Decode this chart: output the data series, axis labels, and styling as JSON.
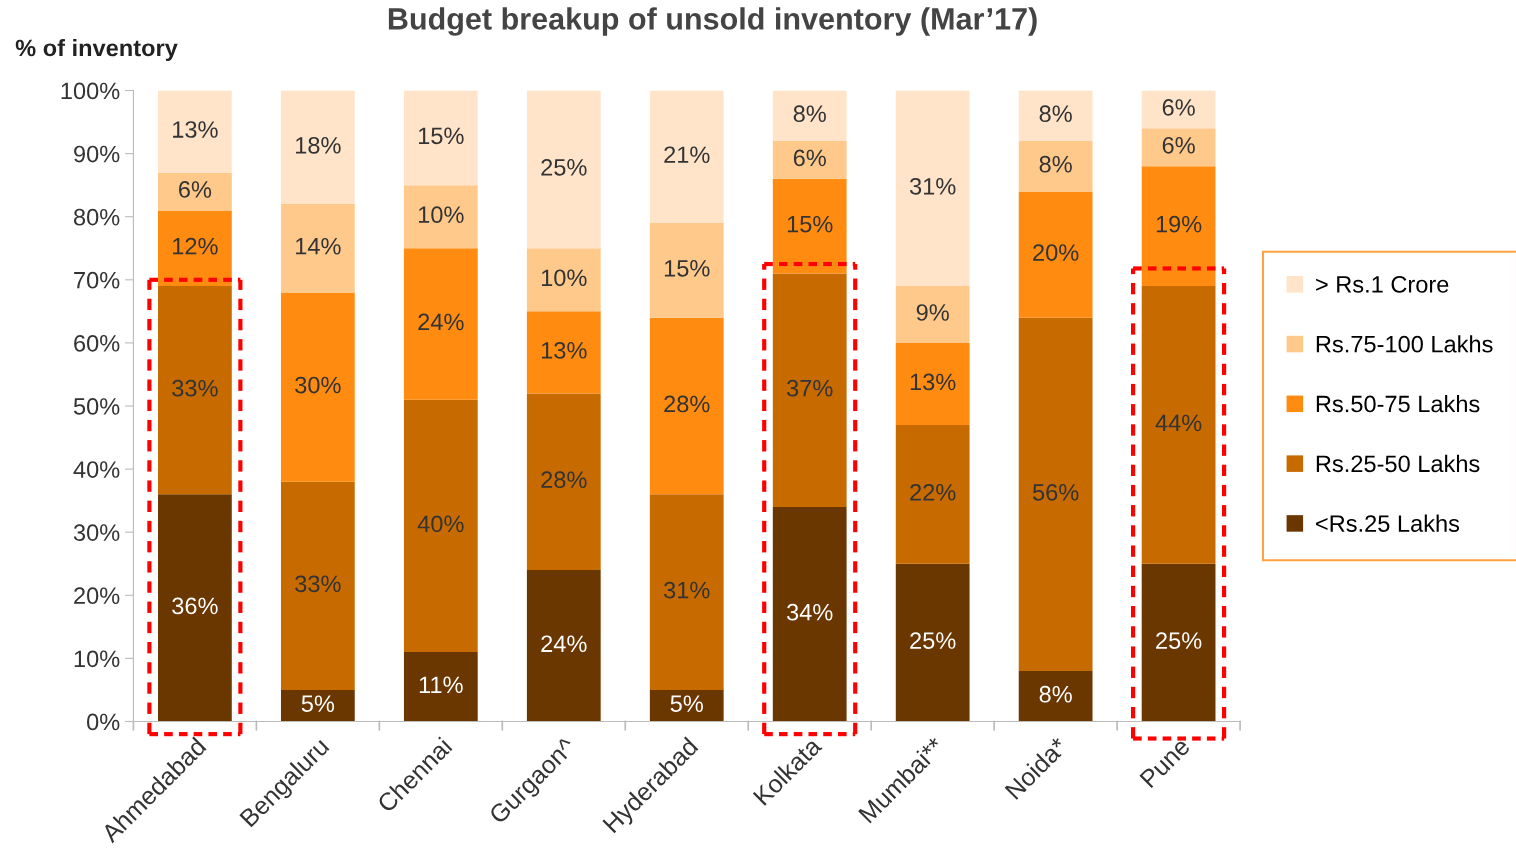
{
  "chart_data": {
    "type": "bar",
    "stacked": true,
    "title": "Budget breakup of unsold inventory (Mar’17)",
    "ylabel": "% of inventory",
    "categories": [
      "Ahmedabad",
      "Bengaluru",
      "Chennai",
      "Gurgaon^",
      "Hyderabad",
      "Kolkata",
      "Mumbai**",
      "Noida*",
      "Pune"
    ],
    "series": [
      {
        "name": "<Rs.25 Lakhs",
        "color": "#6b3700",
        "values": [
          36,
          5,
          11,
          24,
          5,
          34,
          25,
          8,
          25
        ],
        "value_labels": [
          "36%",
          "5%",
          "11%",
          "24%",
          "5%",
          "34%",
          "25%",
          "8%",
          "25%"
        ]
      },
      {
        "name": "Rs.25-50 Lakhs",
        "color": "#c76a00",
        "values": [
          33,
          33,
          40,
          28,
          31,
          37,
          22,
          56,
          44
        ],
        "value_labels": [
          "33%",
          "33%",
          "40%",
          "28%",
          "31%",
          "37%",
          "22%",
          "56%",
          "44%"
        ]
      },
      {
        "name": "Rs.50-75 Lakhs",
        "color": "#ff8c10",
        "values": [
          12,
          30,
          24,
          13,
          28,
          15,
          13,
          20,
          19
        ],
        "value_labels": [
          "12%",
          "30%",
          "24%",
          "13%",
          "28%",
          "15%",
          "13%",
          "20%",
          "19%"
        ]
      },
      {
        "name": "Rs.75-100 Lakhs",
        "color": "#ffc98c",
        "values": [
          6,
          14,
          10,
          10,
          15,
          6,
          9,
          8,
          6
        ],
        "value_labels": [
          "6%",
          "14%",
          "10%",
          "10%",
          "15%",
          "6%",
          "9%",
          "8%",
          "6%"
        ]
      },
      {
        "name": "> Rs.1 Crore",
        "color": "#ffe4c9",
        "values": [
          13,
          18,
          15,
          25,
          21,
          8,
          31,
          8,
          6
        ],
        "value_labels": [
          "13%",
          "18%",
          "15%",
          "25%",
          "21%",
          "8%",
          "31%",
          "8%",
          "6%"
        ]
      }
    ],
    "ylim": [
      0,
      100
    ],
    "yticks": [
      {
        "value": 0,
        "label": "0%"
      },
      {
        "value": 10,
        "label": "10%"
      },
      {
        "value": 20,
        "label": "20%"
      },
      {
        "value": 30,
        "label": "30%"
      },
      {
        "value": 40,
        "label": "40%"
      },
      {
        "value": 50,
        "label": "50%"
      },
      {
        "value": 60,
        "label": "60%"
      },
      {
        "value": 70,
        "label": "70%"
      },
      {
        "value": 80,
        "label": "80%"
      },
      {
        "value": 90,
        "label": "90%"
      },
      {
        "value": 100,
        "label": "100%"
      }
    ],
    "legend": "right",
    "grid": false
  }
}
